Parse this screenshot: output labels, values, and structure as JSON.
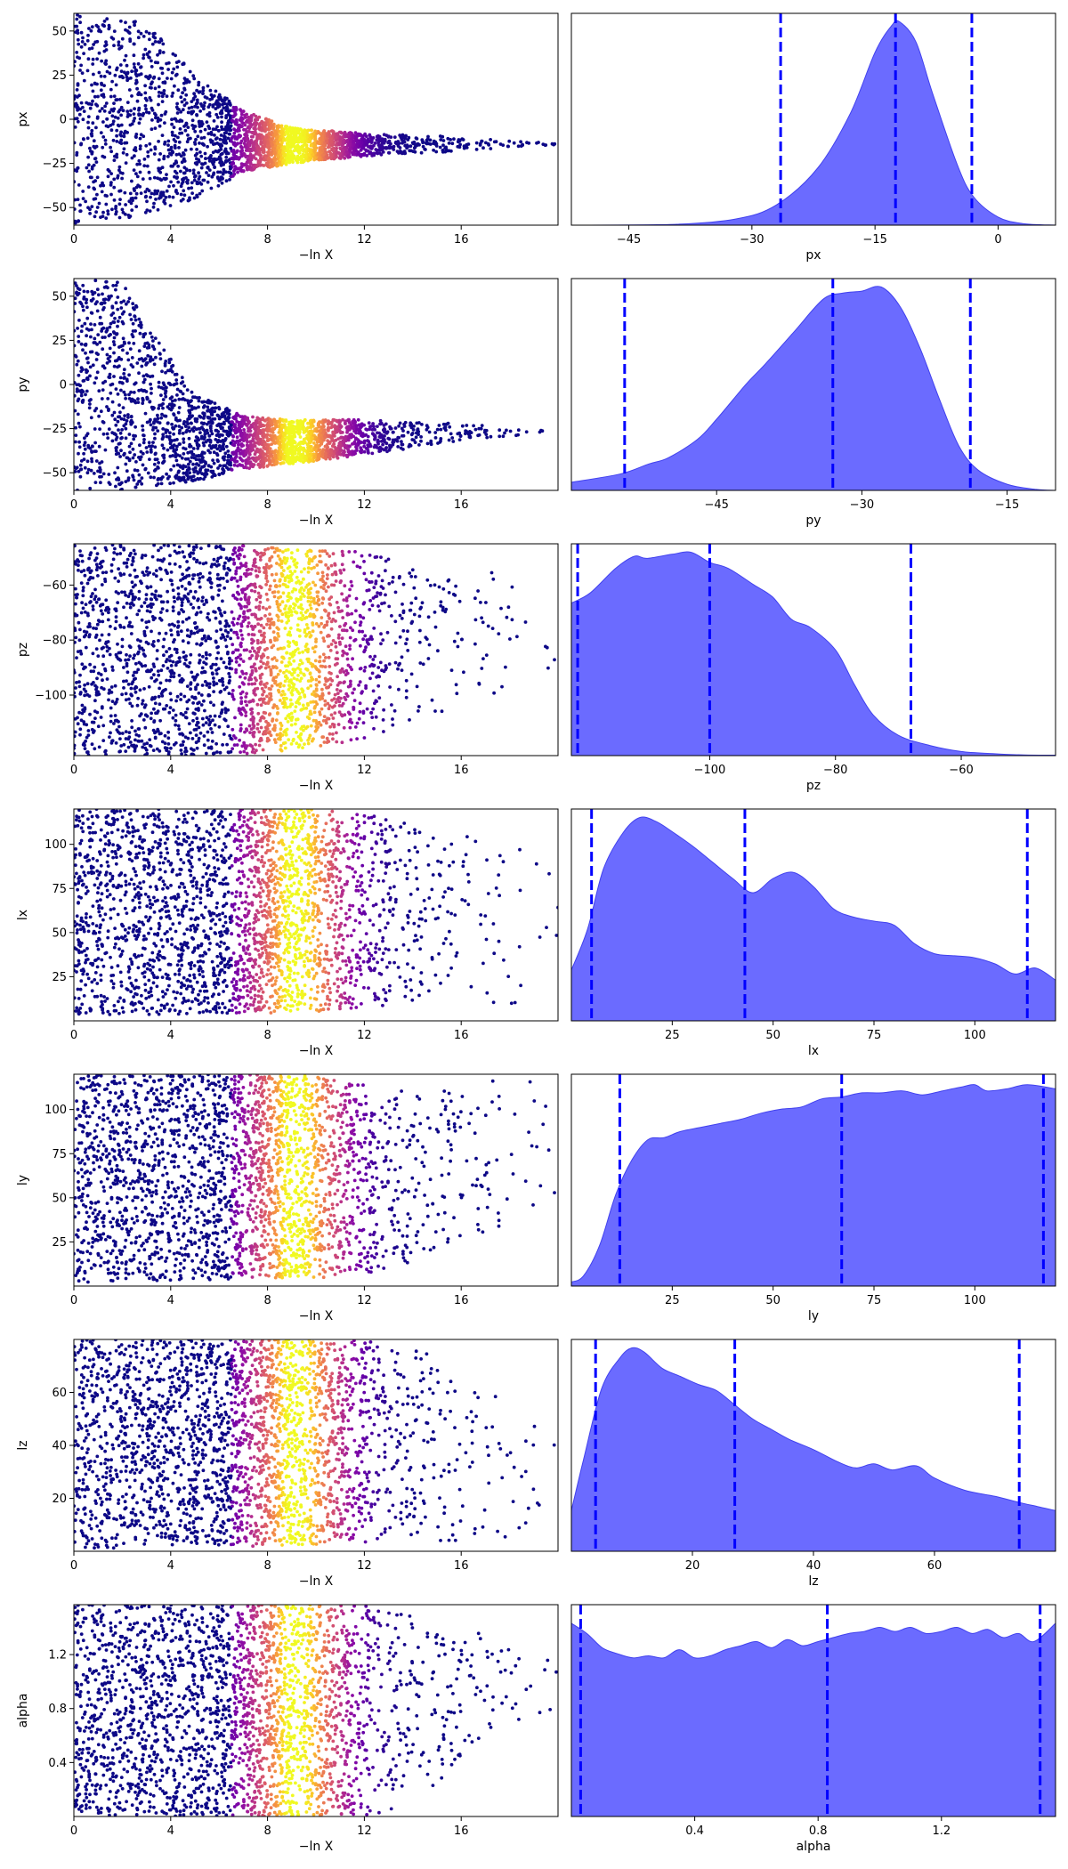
{
  "figure": {
    "colors": {
      "kde_fill": "#6b6bff",
      "kde_edge": "#4141ee",
      "quantile_line": "#0000ff",
      "scatter_low": "#0d0887",
      "scatter_peak": "#f0f921",
      "frame": "#000000"
    },
    "colormap": "plasma",
    "scatter_xlabel": "−ln X"
  },
  "chart_data": [
    {
      "type": "scatter",
      "param": "px",
      "ylabel": "px",
      "xlabel": "−ln X",
      "xlim": [
        0,
        20
      ],
      "ylim": [
        -60,
        60
      ],
      "x_ticks": [
        0,
        4,
        8,
        12,
        16
      ],
      "x_tick_labels": [
        "0",
        "4",
        "8",
        "12",
        "16"
      ],
      "y_ticks": [
        50,
        25,
        0,
        -25,
        -50
      ],
      "y_tick_labels": [
        "50",
        "25",
        "0",
        "−25",
        "−50"
      ],
      "envelope": [
        [
          0,
          -60,
          60
        ],
        [
          3,
          -55,
          55
        ],
        [
          5,
          -45,
          25
        ],
        [
          7,
          -30,
          5
        ],
        [
          9,
          -25,
          -5
        ],
        [
          12,
          -21,
          -8
        ],
        [
          16,
          -18,
          -10
        ],
        [
          19,
          -15,
          -13
        ]
      ],
      "color_peak_x": 9.3,
      "color_peak_width": 2.1
    },
    {
      "type": "area",
      "param": "px",
      "xlabel": "px",
      "xlim": [
        -52,
        7
      ],
      "x_ticks": [
        -45,
        -30,
        -15,
        0
      ],
      "x_tick_labels": [
        "−45",
        "−30",
        "−15",
        "0"
      ],
      "density": [
        [
          -52,
          0
        ],
        [
          -40,
          0.003
        ],
        [
          -32,
          0.03
        ],
        [
          -27,
          0.1
        ],
        [
          -22,
          0.28
        ],
        [
          -18,
          0.55
        ],
        [
          -15,
          0.85
        ],
        [
          -13,
          0.98
        ],
        [
          -12,
          1.0
        ],
        [
          -10,
          0.9
        ],
        [
          -8,
          0.65
        ],
        [
          -5,
          0.3
        ],
        [
          -3,
          0.14
        ],
        [
          0,
          0.04
        ],
        [
          3,
          0.008
        ],
        [
          7,
          0
        ]
      ],
      "quantiles": [
        -26.5,
        -12.5,
        -3.2
      ]
    },
    {
      "type": "scatter",
      "param": "py",
      "ylabel": "py",
      "xlabel": "−ln X",
      "xlim": [
        0,
        20
      ],
      "ylim": [
        -60,
        60
      ],
      "x_ticks": [
        0,
        4,
        8,
        12,
        16
      ],
      "x_tick_labels": [
        "0",
        "4",
        "8",
        "12",
        "16"
      ],
      "y_ticks": [
        50,
        25,
        0,
        -25,
        -50
      ],
      "y_tick_labels": [
        "50",
        "25",
        "0",
        "−25",
        "−50"
      ],
      "envelope": [
        [
          0,
          -60,
          60
        ],
        [
          2,
          -60,
          58
        ],
        [
          3,
          -58,
          35
        ],
        [
          5,
          -55,
          -5
        ],
        [
          7,
          -48,
          -18
        ],
        [
          9,
          -45,
          -20
        ],
        [
          12,
          -40,
          -20
        ],
        [
          16,
          -32,
          -22
        ],
        [
          19,
          -28,
          -25
        ]
      ],
      "color_peak_x": 9.3,
      "color_peak_width": 2.1
    },
    {
      "type": "area",
      "param": "py",
      "xlabel": "py",
      "xlim": [
        -60,
        -10
      ],
      "x_ticks": [
        -45,
        -30,
        -15
      ],
      "x_tick_labels": [
        "−45",
        "−30",
        "−15"
      ],
      "density": [
        [
          -60,
          0.04
        ],
        [
          -55,
          0.08
        ],
        [
          -52,
          0.13
        ],
        [
          -50,
          0.16
        ],
        [
          -47,
          0.25
        ],
        [
          -45,
          0.35
        ],
        [
          -42,
          0.52
        ],
        [
          -40,
          0.62
        ],
        [
          -37,
          0.78
        ],
        [
          -34,
          0.94
        ],
        [
          -32,
          0.97
        ],
        [
          -30,
          0.98
        ],
        [
          -28,
          1.0
        ],
        [
          -26,
          0.9
        ],
        [
          -24,
          0.7
        ],
        [
          -22,
          0.45
        ],
        [
          -20,
          0.22
        ],
        [
          -18,
          0.1
        ],
        [
          -15,
          0.03
        ],
        [
          -12,
          0.005
        ],
        [
          -10,
          0
        ]
      ],
      "quantiles": [
        -54.5,
        -33.0,
        -18.8
      ]
    },
    {
      "type": "scatter",
      "param": "pz",
      "ylabel": "pz",
      "xlabel": "−ln X",
      "xlim": [
        0,
        20
      ],
      "ylim": [
        -122,
        -45
      ],
      "x_ticks": [
        0,
        4,
        8,
        12,
        16
      ],
      "x_tick_labels": [
        "0",
        "4",
        "8",
        "12",
        "16"
      ],
      "y_ticks": [
        -60,
        -80,
        -100
      ],
      "y_tick_labels": [
        "−60",
        "−80",
        "−100"
      ],
      "envelope": [
        [
          0,
          -122,
          -45
        ],
        [
          6,
          -122,
          -45
        ],
        [
          9,
          -120,
          -47
        ],
        [
          12,
          -116,
          -48
        ],
        [
          15,
          -108,
          -52
        ],
        [
          18,
          -100,
          -55
        ],
        [
          20,
          -95,
          -57
        ]
      ],
      "color_peak_x": 9.3,
      "color_peak_width": 2.1
    },
    {
      "type": "area",
      "param": "pz",
      "xlabel": "pz",
      "xlim": [
        -122,
        -45
      ],
      "x_ticks": [
        -100,
        -80,
        -60
      ],
      "x_tick_labels": [
        "−100",
        "−80",
        "−60"
      ],
      "density": [
        [
          -122,
          0.75
        ],
        [
          -119,
          0.8
        ],
        [
          -115,
          0.92
        ],
        [
          -112,
          0.98
        ],
        [
          -110,
          0.97
        ],
        [
          -106,
          0.99
        ],
        [
          -103,
          1.0
        ],
        [
          -100,
          0.95
        ],
        [
          -97,
          0.92
        ],
        [
          -93,
          0.84
        ],
        [
          -90,
          0.78
        ],
        [
          -87,
          0.67
        ],
        [
          -84,
          0.63
        ],
        [
          -80,
          0.52
        ],
        [
          -77,
          0.35
        ],
        [
          -74,
          0.2
        ],
        [
          -70,
          0.1
        ],
        [
          -65,
          0.05
        ],
        [
          -60,
          0.02
        ],
        [
          -55,
          0.01
        ],
        [
          -50,
          0.003
        ],
        [
          -45,
          0.002
        ]
      ],
      "quantiles": [
        -121,
        -100,
        -68
      ]
    },
    {
      "type": "scatter",
      "param": "lx",
      "ylabel": "lx",
      "xlabel": "−ln X",
      "xlim": [
        0,
        20
      ],
      "ylim": [
        0,
        120
      ],
      "x_ticks": [
        0,
        4,
        8,
        12,
        16
      ],
      "x_tick_labels": [
        "0",
        "4",
        "8",
        "12",
        "16"
      ],
      "y_ticks": [
        100,
        75,
        50,
        25
      ],
      "y_tick_labels": [
        "100",
        "75",
        "50",
        "25"
      ],
      "envelope": [
        [
          0,
          2,
          120
        ],
        [
          6,
          4,
          120
        ],
        [
          10,
          5,
          120
        ],
        [
          13,
          8,
          115
        ],
        [
          16,
          8,
          105
        ],
        [
          20,
          10,
          95
        ]
      ],
      "color_peak_x": 9.3,
      "color_peak_width": 2.1
    },
    {
      "type": "area",
      "param": "lx",
      "xlabel": "lx",
      "xlim": [
        0,
        120
      ],
      "x_ticks": [
        25,
        50,
        75,
        100
      ],
      "x_tick_labels": [
        "25",
        "50",
        "75",
        "100"
      ],
      "density": [
        [
          0,
          0.25
        ],
        [
          4,
          0.45
        ],
        [
          8,
          0.75
        ],
        [
          13,
          0.93
        ],
        [
          17,
          1.0
        ],
        [
          21,
          0.98
        ],
        [
          25,
          0.93
        ],
        [
          30,
          0.86
        ],
        [
          35,
          0.78
        ],
        [
          40,
          0.7
        ],
        [
          45,
          0.63
        ],
        [
          50,
          0.7
        ],
        [
          55,
          0.73
        ],
        [
          60,
          0.66
        ],
        [
          65,
          0.55
        ],
        [
          70,
          0.51
        ],
        [
          75,
          0.49
        ],
        [
          80,
          0.47
        ],
        [
          85,
          0.38
        ],
        [
          90,
          0.33
        ],
        [
          95,
          0.32
        ],
        [
          100,
          0.31
        ],
        [
          105,
          0.28
        ],
        [
          110,
          0.23
        ],
        [
          115,
          0.26
        ],
        [
          120,
          0.2
        ]
      ],
      "quantiles": [
        5,
        43,
        113
      ]
    },
    {
      "type": "scatter",
      "param": "ly",
      "ylabel": "ly",
      "xlabel": "−ln X",
      "xlim": [
        0,
        20
      ],
      "ylim": [
        0,
        120
      ],
      "x_ticks": [
        0,
        4,
        8,
        12,
        16
      ],
      "x_tick_labels": [
        "0",
        "4",
        "8",
        "12",
        "16"
      ],
      "y_ticks": [
        100,
        75,
        50,
        25
      ],
      "y_tick_labels": [
        "100",
        "75",
        "50",
        "25"
      ],
      "envelope": [
        [
          0,
          2,
          120
        ],
        [
          8,
          4,
          120
        ],
        [
          11,
          5,
          118
        ],
        [
          13,
          8,
          110
        ],
        [
          15,
          20,
          112
        ],
        [
          17,
          30,
          118
        ],
        [
          19,
          40,
          120
        ],
        [
          20,
          45,
          120
        ]
      ],
      "color_peak_x": 9.3,
      "color_peak_width": 2.1
    },
    {
      "type": "area",
      "param": "ly",
      "xlabel": "ly",
      "xlim": [
        0,
        120
      ],
      "x_ticks": [
        25,
        50,
        75,
        100
      ],
      "x_tick_labels": [
        "25",
        "50",
        "75",
        "100"
      ],
      "density": [
        [
          0,
          0.02
        ],
        [
          3,
          0.05
        ],
        [
          7,
          0.2
        ],
        [
          11,
          0.45
        ],
        [
          15,
          0.62
        ],
        [
          19,
          0.72
        ],
        [
          23,
          0.73
        ],
        [
          27,
          0.76
        ],
        [
          32,
          0.78
        ],
        [
          37,
          0.8
        ],
        [
          42,
          0.82
        ],
        [
          47,
          0.85
        ],
        [
          52,
          0.87
        ],
        [
          57,
          0.88
        ],
        [
          62,
          0.92
        ],
        [
          67,
          0.93
        ],
        [
          72,
          0.95
        ],
        [
          77,
          0.95
        ],
        [
          82,
          0.96
        ],
        [
          87,
          0.94
        ],
        [
          92,
          0.96
        ],
        [
          97,
          0.98
        ],
        [
          100,
          0.99
        ],
        [
          103,
          0.96
        ],
        [
          108,
          0.97
        ],
        [
          113,
          0.99
        ],
        [
          120,
          0.97
        ]
      ],
      "quantiles": [
        12,
        67,
        117
      ]
    },
    {
      "type": "scatter",
      "param": "lz",
      "ylabel": "lz",
      "xlabel": "−ln X",
      "xlim": [
        0,
        20
      ],
      "ylim": [
        0,
        80
      ],
      "x_ticks": [
        0,
        4,
        8,
        12,
        16
      ],
      "x_tick_labels": [
        "0",
        "4",
        "8",
        "12",
        "16"
      ],
      "y_ticks": [
        60,
        40,
        20
      ],
      "y_tick_labels": [
        "60",
        "40",
        "20"
      ],
      "envelope": [
        [
          0,
          1,
          80
        ],
        [
          8,
          2,
          80
        ],
        [
          11,
          3,
          80
        ],
        [
          14,
          4,
          78
        ],
        [
          16,
          4,
          68
        ],
        [
          18,
          4,
          55
        ],
        [
          20,
          5,
          45
        ]
      ],
      "color_peak_x": 9.3,
      "color_peak_width": 2.1
    },
    {
      "type": "area",
      "param": "lz",
      "xlabel": "lz",
      "xlim": [
        0,
        80
      ],
      "x_ticks": [
        20,
        40,
        60
      ],
      "x_tick_labels": [
        "20",
        "40",
        "60"
      ],
      "density": [
        [
          0,
          0.2
        ],
        [
          2,
          0.45
        ],
        [
          5,
          0.8
        ],
        [
          8,
          0.95
        ],
        [
          10,
          1.0
        ],
        [
          12,
          0.98
        ],
        [
          15,
          0.9
        ],
        [
          18,
          0.86
        ],
        [
          21,
          0.82
        ],
        [
          24,
          0.79
        ],
        [
          27,
          0.72
        ],
        [
          30,
          0.65
        ],
        [
          33,
          0.6
        ],
        [
          36,
          0.55
        ],
        [
          40,
          0.5
        ],
        [
          44,
          0.44
        ],
        [
          47,
          0.41
        ],
        [
          50,
          0.43
        ],
        [
          53,
          0.4
        ],
        [
          57,
          0.42
        ],
        [
          60,
          0.36
        ],
        [
          65,
          0.3
        ],
        [
          70,
          0.27
        ],
        [
          74,
          0.24
        ],
        [
          77,
          0.22
        ],
        [
          80,
          0.2
        ]
      ],
      "quantiles": [
        4,
        27,
        74
      ]
    },
    {
      "type": "scatter",
      "param": "alpha",
      "ylabel": "alpha",
      "xlabel": "−ln X",
      "xlim": [
        0,
        20
      ],
      "ylim": [
        0,
        1.57
      ],
      "x_ticks": [
        0,
        4,
        8,
        12,
        16
      ],
      "x_tick_labels": [
        "0",
        "4",
        "8",
        "12",
        "16"
      ],
      "y_ticks": [
        1.2,
        0.8,
        0.4
      ],
      "y_tick_labels": [
        "1.2",
        "0.8",
        "0.4"
      ],
      "envelope": [
        [
          0,
          0,
          1.57
        ],
        [
          11,
          0,
          1.57
        ],
        [
          13,
          0.02,
          1.57
        ],
        [
          15,
          0.2,
          1.45
        ],
        [
          17,
          0.55,
          1.35
        ],
        [
          19,
          0.75,
          1.25
        ],
        [
          20,
          0.8,
          1.2
        ]
      ],
      "color_peak_x": 9.3,
      "color_peak_width": 2.1
    },
    {
      "type": "area",
      "param": "alpha",
      "xlabel": "alpha",
      "xlim": [
        0,
        1.57
      ],
      "x_ticks": [
        0.4,
        0.8,
        1.2
      ],
      "x_tick_labels": [
        "0.4",
        "0.8",
        "1.2"
      ],
      "density": [
        [
          0,
          0.95
        ],
        [
          0.05,
          0.9
        ],
        [
          0.1,
          0.83
        ],
        [
          0.15,
          0.8
        ],
        [
          0.2,
          0.78
        ],
        [
          0.25,
          0.79
        ],
        [
          0.3,
          0.78
        ],
        [
          0.35,
          0.82
        ],
        [
          0.4,
          0.78
        ],
        [
          0.45,
          0.79
        ],
        [
          0.5,
          0.82
        ],
        [
          0.55,
          0.84
        ],
        [
          0.6,
          0.86
        ],
        [
          0.65,
          0.83
        ],
        [
          0.7,
          0.87
        ],
        [
          0.75,
          0.84
        ],
        [
          0.8,
          0.86
        ],
        [
          0.85,
          0.88
        ],
        [
          0.9,
          0.9
        ],
        [
          0.95,
          0.91
        ],
        [
          1.0,
          0.93
        ],
        [
          1.05,
          0.91
        ],
        [
          1.1,
          0.93
        ],
        [
          1.15,
          0.9
        ],
        [
          1.2,
          0.91
        ],
        [
          1.25,
          0.93
        ],
        [
          1.3,
          0.9
        ],
        [
          1.35,
          0.92
        ],
        [
          1.4,
          0.88
        ],
        [
          1.45,
          0.9
        ],
        [
          1.5,
          0.86
        ],
        [
          1.57,
          0.95
        ]
      ],
      "quantiles": [
        0.03,
        0.83,
        1.52
      ]
    }
  ]
}
